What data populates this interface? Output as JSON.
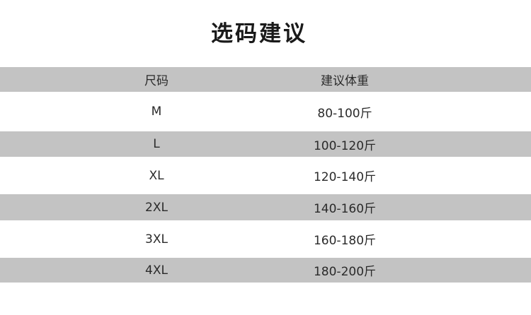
{
  "title": "选码建议",
  "table": {
    "headers": [
      "尺码",
      "建议体重"
    ],
    "rows": [
      [
        "M",
        "80-100斤"
      ],
      [
        "L",
        "100-120斤"
      ],
      [
        "XL",
        "120-140斤"
      ],
      [
        "2XL",
        "140-160斤"
      ],
      [
        "3XL",
        "160-180斤"
      ],
      [
        "4XL",
        "180-200斤"
      ]
    ]
  },
  "colors": {
    "band": "#c3c3c3",
    "background": "#ffffff"
  }
}
